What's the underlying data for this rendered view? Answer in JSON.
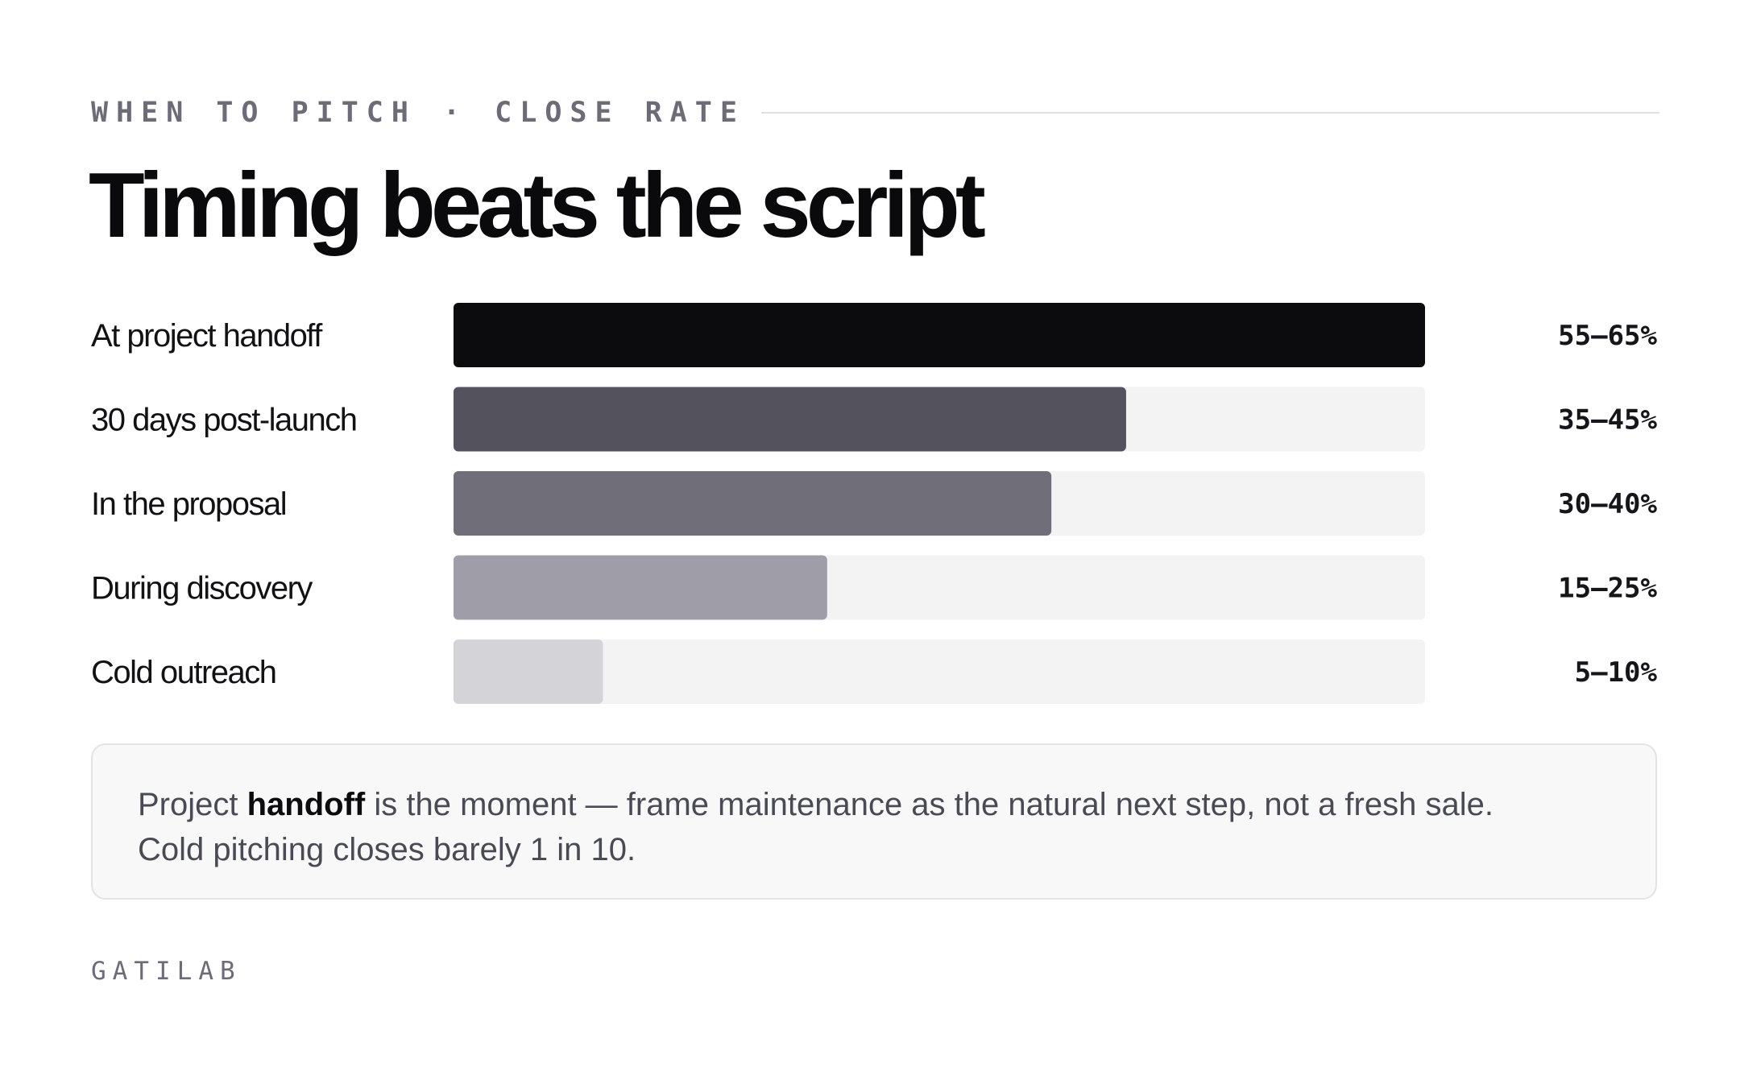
{
  "header": {
    "kicker_left": "WHEN TO PITCH",
    "kicker_separator": "·",
    "kicker_right": "CLOSE RATE",
    "title": "Timing beats the script"
  },
  "chart_data": {
    "type": "bar",
    "orientation": "horizontal",
    "categories": [
      "At project handoff",
      "30 days post-launch",
      "In the proposal",
      "During discovery",
      "Cold outreach"
    ],
    "values": [
      65,
      45,
      40,
      25,
      10
    ],
    "value_labels": [
      "55–65%",
      "35–45%",
      "30–40%",
      "15–25%",
      "5–10%"
    ],
    "bar_colors": [
      "#0c0c0e",
      "#53525d",
      "#6f6e79",
      "#9f9ea8",
      "#d3d3d8"
    ],
    "track_color": "#f3f3f3",
    "xlim": [
      0,
      65
    ],
    "grid": false,
    "legend": "none"
  },
  "note": {
    "pre": "Project ",
    "bold": "handoff",
    "post": " is the moment — frame maintenance as the natural next step, not a fresh sale.",
    "line2": "Cold pitching closes barely 1 in 10."
  },
  "footer": {
    "brand": "GATILAB"
  }
}
